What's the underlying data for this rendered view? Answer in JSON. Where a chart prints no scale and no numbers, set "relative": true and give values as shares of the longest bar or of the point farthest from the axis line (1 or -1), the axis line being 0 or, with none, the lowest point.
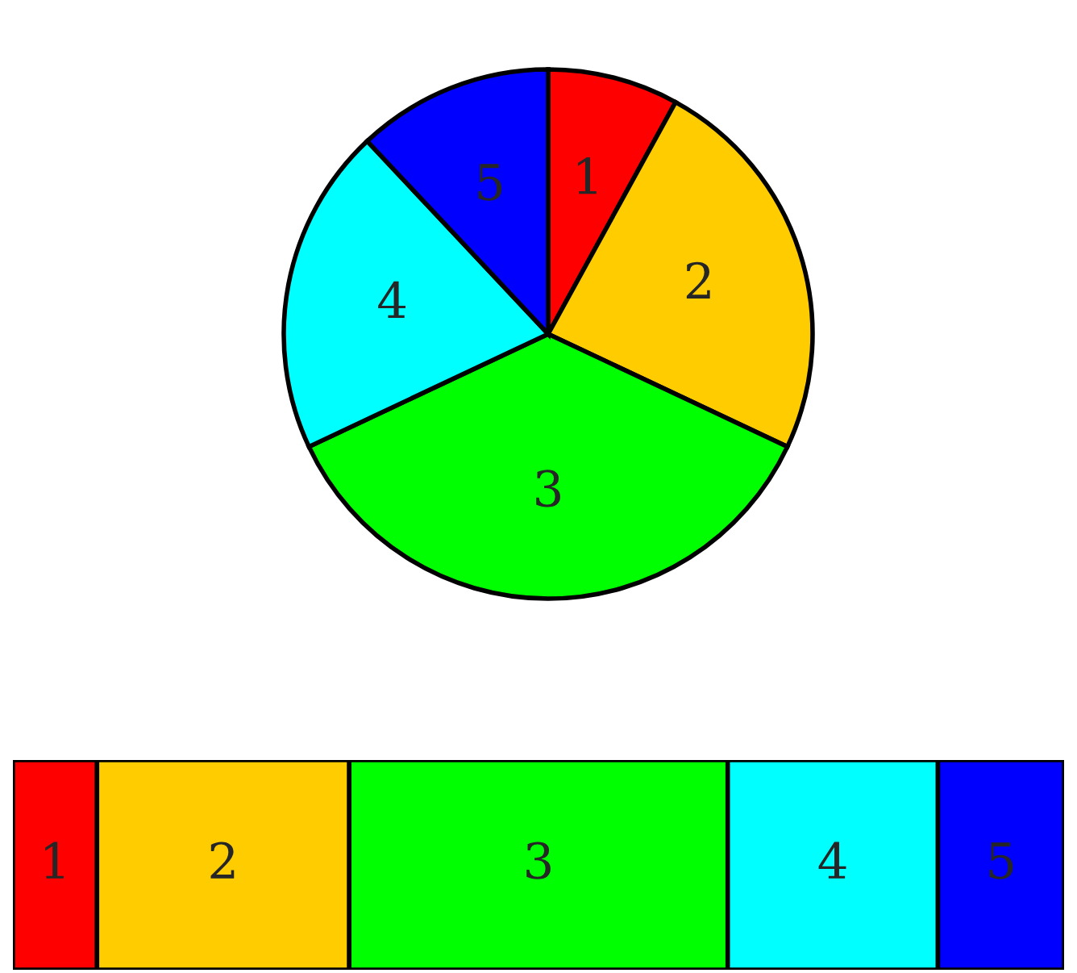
{
  "chart_data": [
    {
      "type": "pie",
      "categories": [
        "1",
        "2",
        "3",
        "4",
        "5"
      ],
      "values": [
        8,
        24,
        36,
        20,
        12
      ],
      "colors": [
        "#ff0000",
        "#ffcc00",
        "#00ff00",
        "#00ffff",
        "#0000ff"
      ]
    },
    {
      "type": "bar",
      "orientation": "horizontal",
      "stacked": true,
      "relative": true,
      "categories": [
        null
      ],
      "series": [
        {
          "name": "1",
          "color": "#ff0000",
          "values": [
            0.08
          ]
        },
        {
          "name": "2",
          "color": "#ffcc00",
          "values": [
            0.24
          ]
        },
        {
          "name": "3",
          "color": "#00ff00",
          "values": [
            0.36
          ]
        },
        {
          "name": "4",
          "color": "#00ffff",
          "values": [
            0.2
          ]
        },
        {
          "name": "5",
          "color": "#0000ff",
          "values": [
            0.12
          ]
        }
      ]
    }
  ]
}
